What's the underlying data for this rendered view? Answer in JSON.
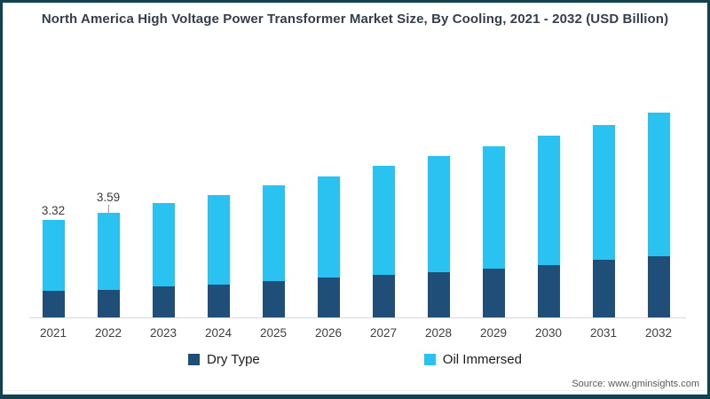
{
  "title": "North America High Voltage Power Transformer Market Size, By Cooling, 2021 - 2032 (USD Billion)",
  "source": "Source: www.gminsights.com",
  "legend": [
    {
      "label": "Dry Type",
      "color": "#1F4E79"
    },
    {
      "label": "Oil Immersed",
      "color": "#29C2F1"
    }
  ],
  "colors": {
    "dry_type": "#1F4E79",
    "oil_immersed": "#29C2F1",
    "frame_border": "#15404E",
    "axis_line": "#D9D9D9"
  },
  "chart_data": {
    "type": "bar",
    "stacked": true,
    "title": "North America High Voltage Power Transformer Market Size, By Cooling, 2021 - 2032 (USD Billion)",
    "xlabel": "",
    "ylabel": "USD Billion",
    "grid": false,
    "legend_position": "bottom",
    "categories": [
      "2021",
      "2022",
      "2023",
      "2024",
      "2025",
      "2026",
      "2027",
      "2028",
      "2029",
      "2030",
      "2031",
      "2032"
    ],
    "series": [
      {
        "name": "Dry Type",
        "color": "#1F4E79",
        "values": [
          0.9,
          0.95,
          1.05,
          1.13,
          1.23,
          1.36,
          1.45,
          1.56,
          1.68,
          1.79,
          1.96,
          2.09
        ]
      },
      {
        "name": "Oil Immersed",
        "color": "#29C2F1",
        "values": [
          2.42,
          2.64,
          2.85,
          3.06,
          3.29,
          3.47,
          3.74,
          3.94,
          4.17,
          4.42,
          4.61,
          4.9
        ]
      }
    ],
    "totals": [
      3.32,
      3.59,
      3.9,
      4.19,
      4.52,
      4.83,
      5.19,
      5.5,
      5.85,
      6.21,
      6.57,
      6.99
    ],
    "data_labels": [
      {
        "category": "2021",
        "text": "3.32",
        "leader": false
      },
      {
        "category": "2022",
        "text": "3.59",
        "leader": true
      }
    ]
  }
}
